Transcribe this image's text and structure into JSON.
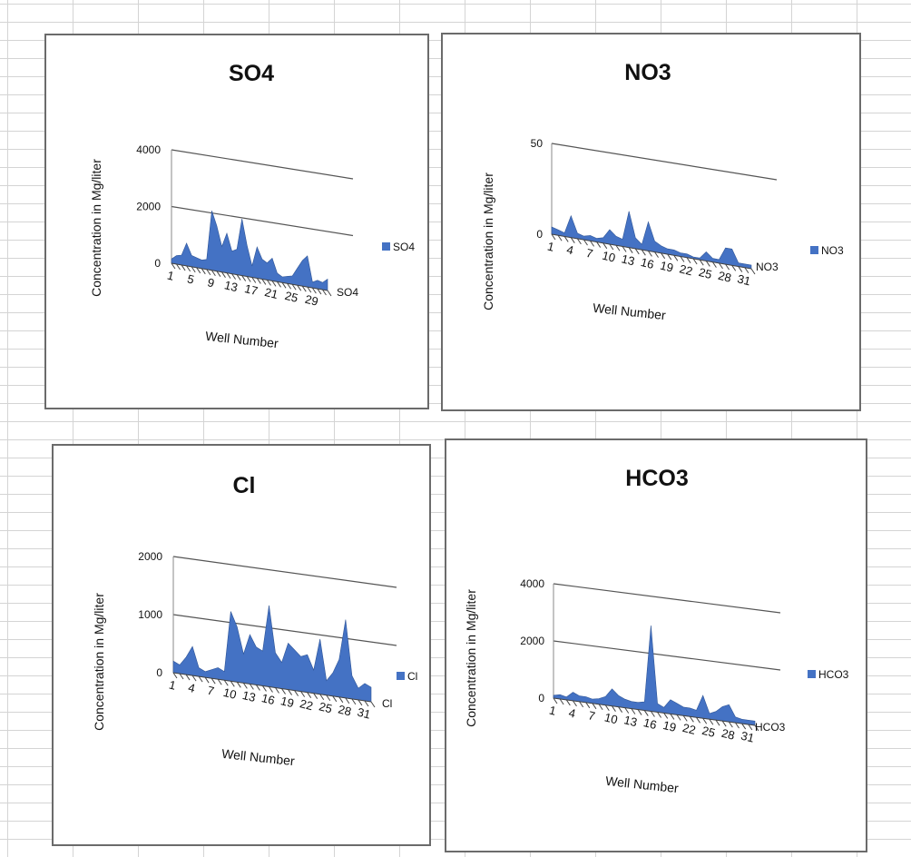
{
  "chart_data": [
    {
      "type": "area",
      "title": "SO4",
      "ylabel": "Concentration in Mg/liter",
      "xlabel": "Well Number",
      "series_name": "SO4",
      "axis_series_label": "SO4",
      "legend_label": "SO4",
      "yticks": [
        0,
        2000,
        4000
      ],
      "ylim": [
        0,
        4000
      ],
      "xticks": [
        "1",
        "5",
        "9",
        "13",
        "17",
        "21",
        "25",
        "29"
      ],
      "x": [
        1,
        2,
        3,
        4,
        5,
        6,
        7,
        8,
        9,
        10,
        11,
        12,
        13,
        14,
        15,
        16,
        17,
        18,
        19,
        20,
        21,
        22,
        23,
        24,
        25,
        26,
        27,
        28,
        29,
        30,
        31,
        32
      ],
      "values": [
        150,
        300,
        350,
        800,
        400,
        350,
        300,
        350,
        2100,
        1600,
        900,
        1400,
        800,
        900,
        2000,
        1100,
        400,
        1100,
        700,
        600,
        800,
        300,
        200,
        250,
        300,
        600,
        900,
        1100,
        200,
        300,
        250,
        400
      ],
      "legend_position": "right",
      "color": "#4472c4"
    },
    {
      "type": "area",
      "title": "NO3",
      "ylabel": "Concentration in Mg/liter",
      "xlabel": "Well Number",
      "series_name": "NO3",
      "axis_series_label": "NO3",
      "legend_label": "NO3",
      "yticks": [
        0,
        50
      ],
      "ylim": [
        0,
        50
      ],
      "xticks": [
        "1",
        "4",
        "7",
        "10",
        "13",
        "16",
        "19",
        "22",
        "25",
        "28",
        "31"
      ],
      "x": [
        1,
        2,
        3,
        4,
        5,
        6,
        7,
        8,
        9,
        10,
        11,
        12,
        13,
        14,
        15,
        16,
        17,
        18,
        19,
        20,
        21,
        22,
        23,
        24,
        25,
        26,
        27,
        28,
        29,
        30,
        31,
        32
      ],
      "values": [
        4,
        3,
        2,
        12,
        3,
        2,
        3,
        2,
        3,
        8,
        5,
        4,
        20,
        6,
        3,
        16,
        6,
        4,
        3,
        3,
        2,
        2,
        1,
        1,
        5,
        2,
        2,
        9,
        9,
        2,
        2,
        2
      ],
      "legend_position": "right",
      "color": "#4472c4"
    },
    {
      "type": "area",
      "title": "Cl",
      "ylabel": "Concentration in Mg/liter",
      "xlabel": "Well Number",
      "series_name": "Cl",
      "axis_series_label": "Cl",
      "legend_label": "Cl",
      "yticks": [
        0,
        1000,
        2000
      ],
      "ylim": [
        0,
        2000
      ],
      "xticks": [
        "1",
        "4",
        "7",
        "10",
        "13",
        "16",
        "19",
        "22",
        "25",
        "28",
        "31"
      ],
      "x": [
        1,
        2,
        3,
        4,
        5,
        6,
        7,
        8,
        9,
        10,
        11,
        12,
        13,
        14,
        15,
        16,
        17,
        18,
        19,
        20,
        21,
        22,
        23,
        24,
        25,
        26,
        27,
        28,
        29,
        30,
        31,
        32
      ],
      "values": [
        200,
        150,
        300,
        500,
        150,
        100,
        150,
        200,
        150,
        1200,
        950,
        500,
        850,
        650,
        600,
        1400,
        600,
        450,
        800,
        700,
        600,
        650,
        400,
        950,
        250,
        400,
        650,
        1350,
        400,
        200,
        300,
        250
      ],
      "legend_position": "right",
      "color": "#4472c4"
    },
    {
      "type": "area",
      "title": "HCO3",
      "ylabel": "Concentration in Mg/liter",
      "xlabel": "Well Number",
      "series_name": "HCO3",
      "axis_series_label": "HCO3",
      "legend_label": "HCO3",
      "yticks": [
        0,
        2000,
        4000
      ],
      "ylim": [
        0,
        4000
      ],
      "xticks": [
        "1",
        "4",
        "7",
        "10",
        "13",
        "16",
        "19",
        "22",
        "25",
        "28",
        "31"
      ],
      "x": [
        1,
        2,
        3,
        4,
        5,
        6,
        7,
        8,
        9,
        10,
        11,
        12,
        13,
        14,
        15,
        16,
        17,
        18,
        19,
        20,
        21,
        22,
        23,
        24,
        25,
        26,
        27,
        28,
        29,
        30,
        31,
        32
      ],
      "values": [
        100,
        150,
        100,
        300,
        200,
        200,
        150,
        200,
        300,
        600,
        400,
        300,
        250,
        250,
        300,
        3000,
        300,
        200,
        500,
        400,
        300,
        300,
        250,
        800,
        200,
        300,
        500,
        600,
        200,
        150,
        150,
        150
      ],
      "legend_position": "right",
      "color": "#4472c4"
    }
  ]
}
